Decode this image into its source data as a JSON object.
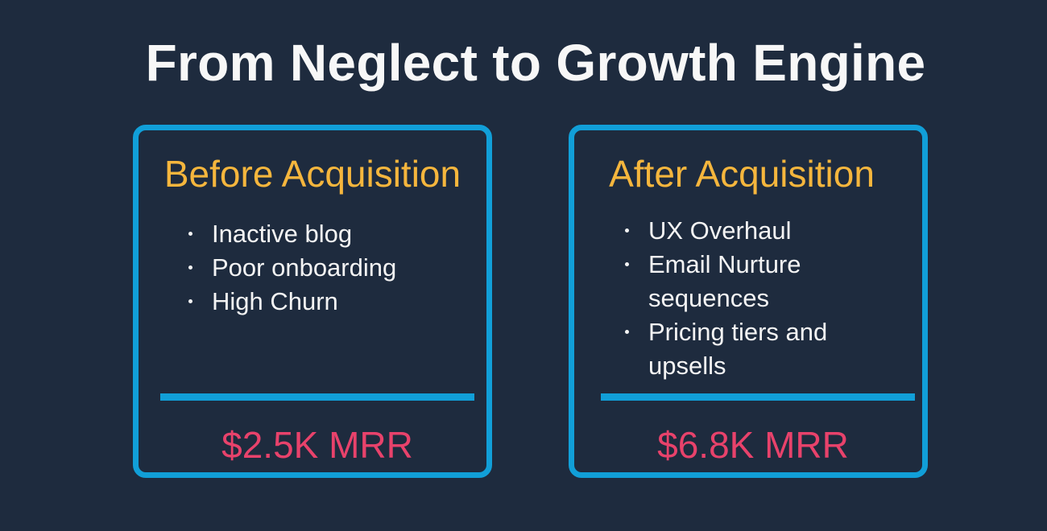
{
  "title": "From Neglect to Growth Engine",
  "colors": {
    "background": "#1e2b3e",
    "border": "#119fd8",
    "heading": "#f5b63d",
    "metric": "#e8426b",
    "text": "#f4f4f4"
  },
  "before": {
    "heading": "Before Acquisition",
    "points": [
      "Inactive blog",
      "Poor onboarding",
      "High Churn"
    ],
    "metric": "$2.5K MRR"
  },
  "after": {
    "heading": "After Acquisition",
    "points": [
      "UX Overhaul",
      "Email Nurture sequences",
      "Pricing tiers and upsells"
    ],
    "metric": "$6.8K MRR"
  }
}
